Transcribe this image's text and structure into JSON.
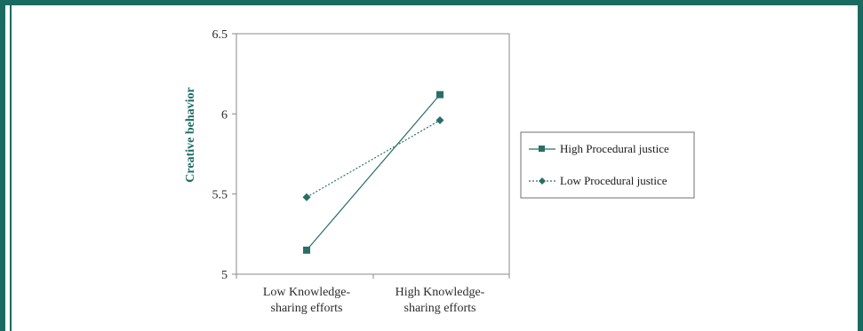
{
  "chart_data": {
    "type": "line",
    "title": "",
    "xlabel": "",
    "ylabel": "Creative behavior",
    "categories": [
      [
        "Low Knowledge-",
        "sharing efforts"
      ],
      [
        "High Knowledge-",
        "sharing efforts"
      ]
    ],
    "ylim": [
      5,
      6.5
    ],
    "yticks": [
      "6.5",
      "6",
      "5.5",
      "5"
    ],
    "ytick_values": [
      6.5,
      6,
      5.5,
      5
    ],
    "grid": false,
    "legend_position": "right",
    "series": [
      {
        "name": "High Procedural justice",
        "values": [
          5.15,
          6.12
        ],
        "marker": "square",
        "dash": "solid",
        "color": "#2a6e66"
      },
      {
        "name": "Low Procedural justice",
        "values": [
          5.48,
          5.96
        ],
        "marker": "diamond",
        "dash": "dotted",
        "color": "#2a6e66"
      }
    ]
  },
  "colors": {
    "frame": "#1a6a62",
    "axis": "#7a7a7a",
    "label": "#1a6a62"
  }
}
